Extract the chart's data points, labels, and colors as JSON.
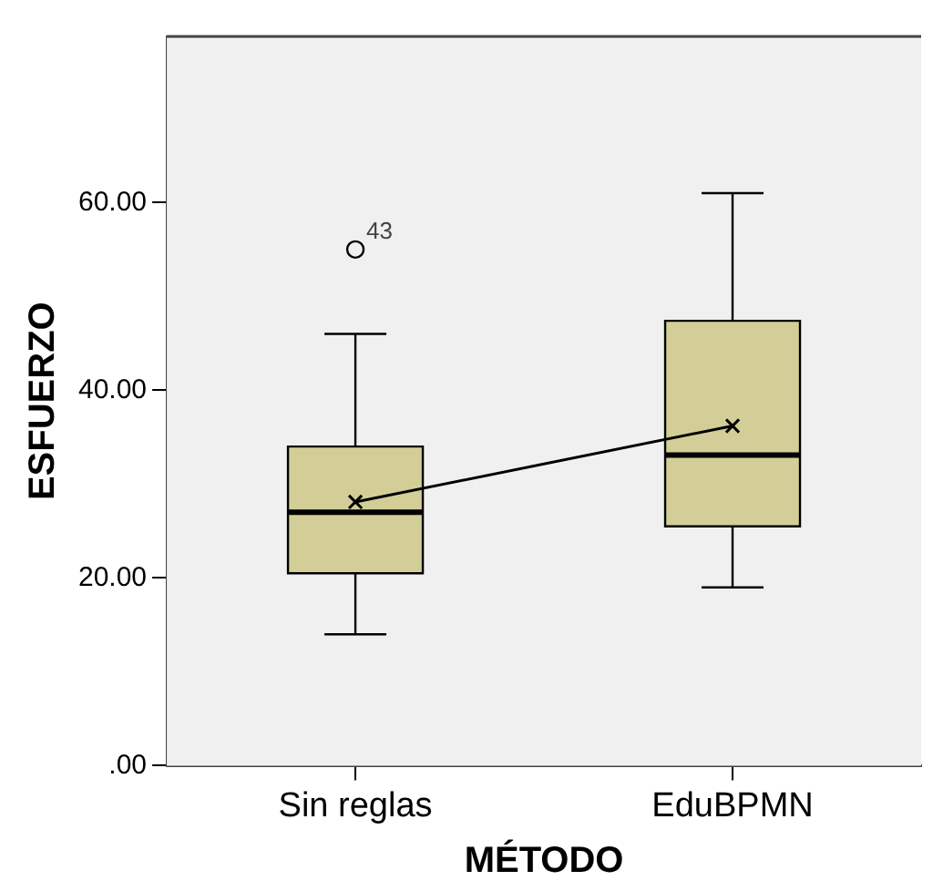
{
  "chart_data": {
    "type": "box",
    "xlabel": "MÉTODO",
    "ylabel": "ESFUERZO",
    "categories": [
      "Sin reglas",
      "EduBPMN"
    ],
    "color": "#d3ce97",
    "boxes": [
      {
        "low": 14,
        "q1": 20.5,
        "median": 27,
        "q3": 34,
        "high": 46,
        "outliers": [
          55
        ]
      },
      {
        "low": 19,
        "q1": 25.5,
        "median": 33.1,
        "q3": 47.4,
        "high": 61
      }
    ],
    "series": [
      {
        "type": "line",
        "color": "#000000",
        "values": [
          28.1,
          36.2
        ],
        "marker": "cross"
      }
    ],
    "ylim": [
      0,
      77.7
    ],
    "yticks": [
      {
        "value": 0,
        "label": ".00"
      },
      {
        "value": 20,
        "label": "20.00"
      },
      {
        "value": 40,
        "label": "40.00"
      },
      {
        "value": 60,
        "label": "60.00"
      }
    ],
    "legend": false,
    "annotations": [
      "43"
    ]
  }
}
